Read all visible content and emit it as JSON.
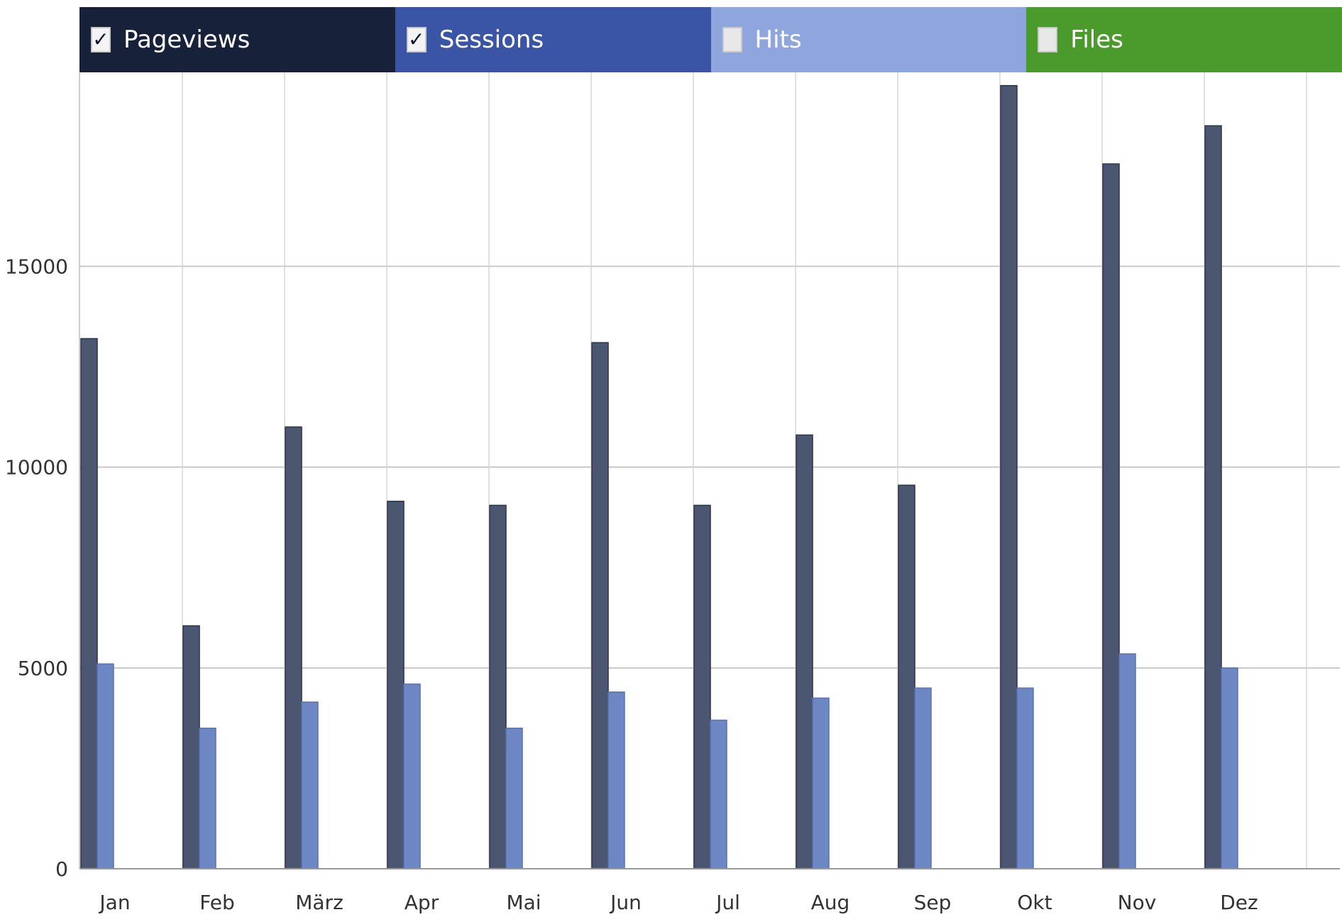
{
  "legend": [
    {
      "label": "Pageviews",
      "checked": true,
      "color": "#18213a"
    },
    {
      "label": "Sessions",
      "checked": true,
      "color": "#3a55a5"
    },
    {
      "label": "Hits",
      "checked": false,
      "color": "#8ea6dd"
    },
    {
      "label": "Files",
      "checked": false,
      "color": "#4b9a2c"
    }
  ],
  "checkmark_glyph": "✓",
  "chart_data": {
    "type": "bar",
    "categories": [
      "Jan",
      "Feb",
      "März",
      "Apr",
      "Mai",
      "Jun",
      "Jul",
      "Aug",
      "Sep",
      "Okt",
      "Nov",
      "Dez"
    ],
    "series": [
      {
        "name": "Pageviews",
        "color": "#4b5670",
        "values": [
          13200,
          6050,
          11000,
          9150,
          9050,
          13100,
          9050,
          10800,
          9550,
          19500,
          17550,
          18500
        ]
      },
      {
        "name": "Sessions",
        "color": "#6d86c4",
        "values": [
          5100,
          3500,
          4150,
          4600,
          3500,
          4400,
          3700,
          4250,
          4500,
          4500,
          5350,
          5000
        ]
      }
    ],
    "yticks": [
      0,
      5000,
      10000,
      15000
    ],
    "ylim": [
      0,
      19600
    ],
    "grid": true,
    "legend_position": "top"
  }
}
